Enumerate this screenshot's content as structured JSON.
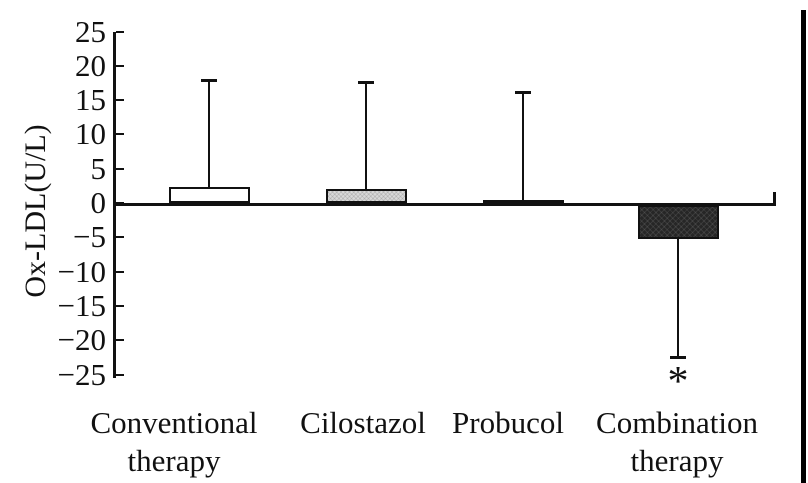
{
  "figure": {
    "background_color": "#ffffff",
    "scan_border_color": "#000000",
    "axis_color": "#111111"
  },
  "chart_data": {
    "type": "bar",
    "title": "",
    "xlabel": "",
    "ylabel": "Ox-LDL(U/L)",
    "ylim": [
      -25,
      25
    ],
    "ytick_step": 5,
    "yticks": [
      25,
      20,
      15,
      10,
      5,
      0,
      -5,
      -10,
      -15,
      -20,
      -25
    ],
    "grid": false,
    "legend": "none",
    "categories": [
      "Conventional\ntherapy",
      "Cilostazol",
      "Probucol",
      "Combination\ntherapy"
    ],
    "values": [
      2.3,
      2.1,
      0.4,
      -4.9
    ],
    "whisker_ends": [
      18.0,
      17.6,
      16.2,
      -22.5
    ],
    "error_direction": [
      "up",
      "up",
      "up",
      "down"
    ],
    "bar_fill_colors": [
      "#ffffff",
      "#d9d9d9",
      "#4a4a4a",
      "#262626"
    ],
    "bar_fill_patterns": [
      "none",
      "stipple",
      "none",
      "crosshatch"
    ],
    "bar_edge_color": "#111111",
    "annotations": [
      {
        "category_index": 3,
        "text": "*",
        "position": "below-lower-whisker"
      }
    ]
  }
}
